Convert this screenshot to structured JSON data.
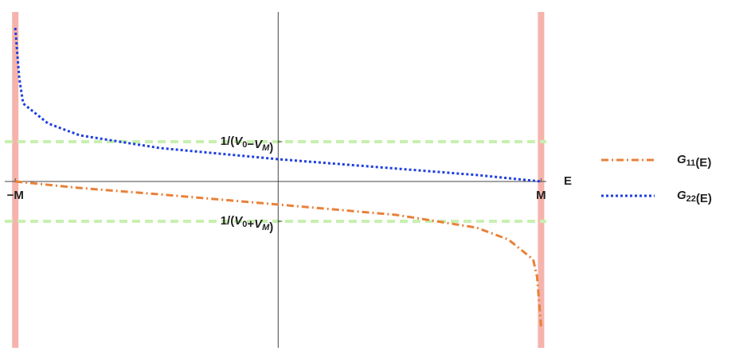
{
  "chart_data": {
    "type": "line",
    "x_label": "E",
    "xlim": [
      -1.04,
      1.02
    ],
    "ylim": [
      -4.18,
      4.26
    ],
    "xticks": [
      {
        "value": -1,
        "label": "−M"
      },
      {
        "value": 1,
        "label": "M"
      }
    ],
    "yticks": [
      {
        "value": 1,
        "label": "1/(V0−VM)"
      },
      {
        "value": -1,
        "label": "1/(V0+VM)"
      }
    ],
    "grid": true,
    "series": [
      {
        "name": "G11(E)",
        "color": "#e8813a",
        "dash": "dashdot",
        "x": [
          -1,
          -0.76,
          -0.457,
          0,
          0.45,
          0.755,
          0.876,
          0.97,
          0.985,
          1
        ],
        "values": [
          0,
          -0.16,
          -0.32,
          -0.58,
          -0.84,
          -1.16,
          -1.46,
          -1.96,
          -2.4,
          -3.64
        ]
      },
      {
        "name": "G22(E)",
        "color": "#1f3fe0",
        "dash": "dot",
        "x": [
          -1,
          -0.985,
          -0.97,
          -0.876,
          -0.755,
          -0.45,
          0,
          0.457,
          0.76,
          1
        ],
        "values": [
          3.86,
          2.6,
          1.96,
          1.46,
          1.16,
          0.84,
          0.56,
          0.32,
          0.16,
          0
        ]
      }
    ]
  }
}
